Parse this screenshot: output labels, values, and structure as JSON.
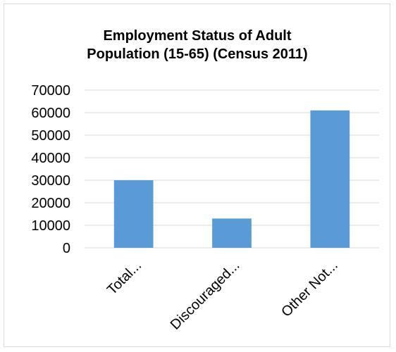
{
  "chart_data": {
    "type": "bar",
    "title_lines": [
      "Employment Status of Adult",
      "Population (15-65) (Census 2011)"
    ],
    "categories": [
      "Total...",
      "Discouraged...",
      "Other Not..."
    ],
    "values": [
      30000,
      13000,
      61000
    ],
    "ylim": [
      0,
      70000
    ],
    "yticks": [
      0,
      10000,
      20000,
      30000,
      40000,
      50000,
      60000,
      70000
    ],
    "xlabel": "",
    "ylabel": "",
    "grid": true,
    "legend": "none",
    "bar_color": "#5b9bd5"
  }
}
